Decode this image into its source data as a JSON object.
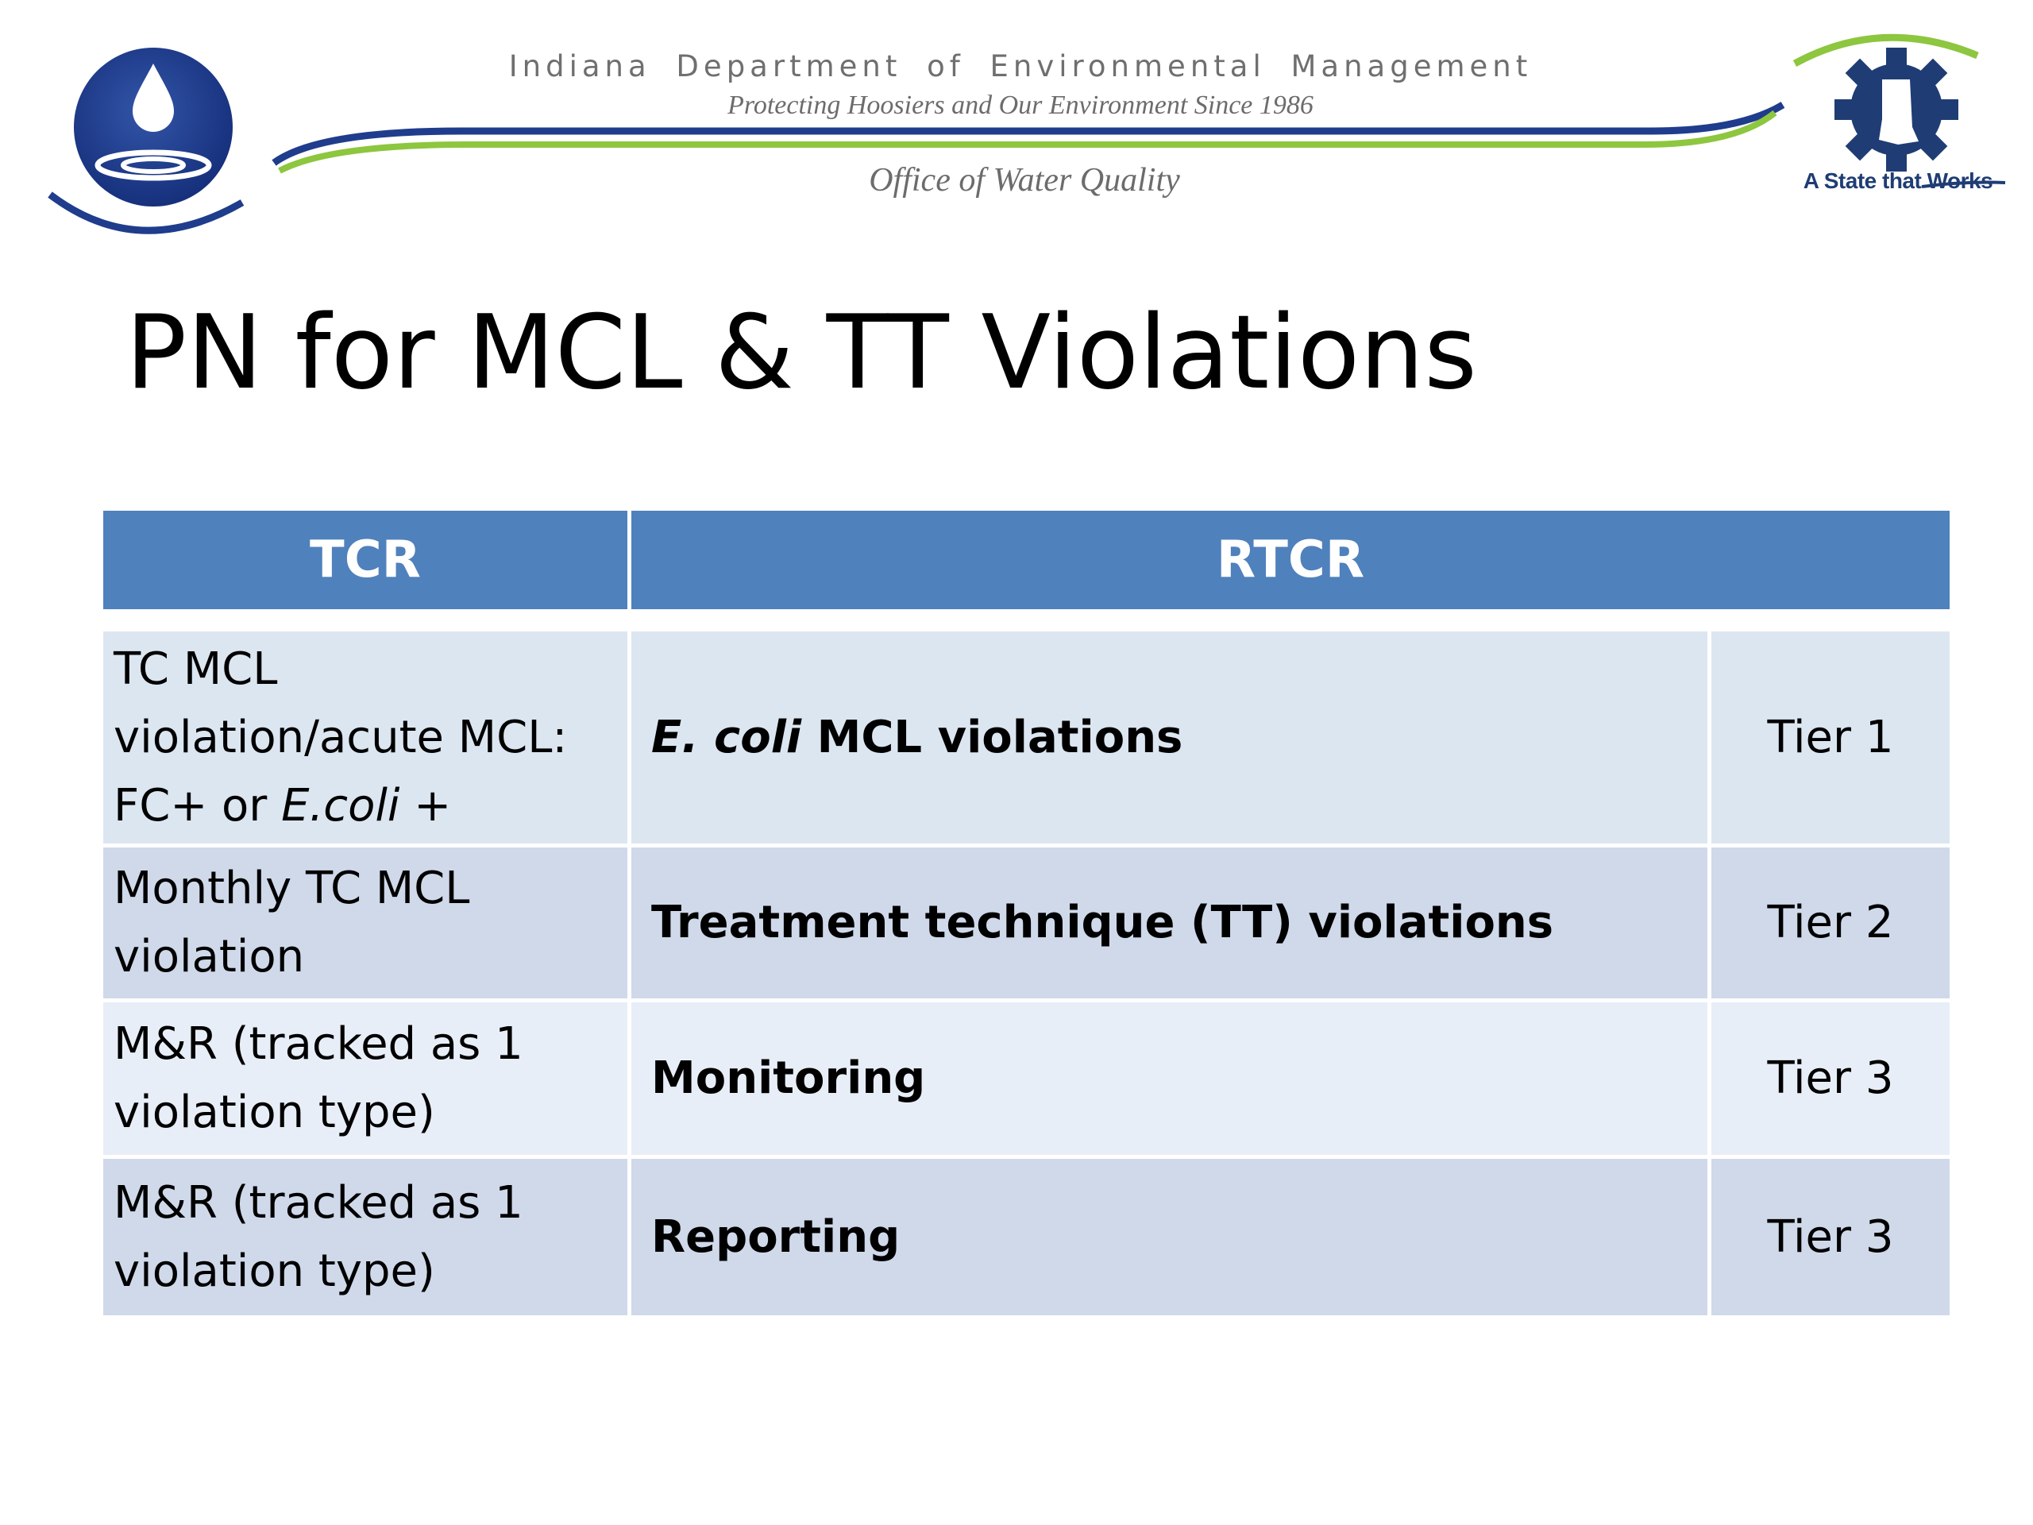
{
  "header": {
    "org_name": "Indiana Department of Environmental Management",
    "tagline": "Protecting Hoosiers and Our Environment Since 1986",
    "office": "Office of Water Quality",
    "state_logo_text": "A State that Works",
    "icons": [
      "idem-water-drop-logo-icon",
      "indiana-gear-logo-icon"
    ],
    "colors": {
      "navy": "#1f3d8c",
      "green": "#8dc63f",
      "header_blue": "#4f81bd"
    }
  },
  "title": "PN for MCL & TT Violations",
  "table": {
    "headers": {
      "tcr": "TCR",
      "rtcr": "RTCR"
    },
    "rows": [
      {
        "tcr": {
          "line1": "TC MCL",
          "line2": "violation/acute MCL:",
          "line3_pre": "FC+ or ",
          "line3_italic": "E.coli +"
        },
        "rtcr_italic": "E. coli",
        "rtcr": " MCL violations",
        "tier": "Tier 1"
      },
      {
        "tcr": {
          "line1": "Monthly TC MCL",
          "line2": "violation"
        },
        "rtcr": "Treatment technique (TT) violations",
        "tier": "Tier 2"
      },
      {
        "tcr": {
          "line1": "M&R (tracked as 1",
          "line2": "violation type)"
        },
        "rtcr": "Monitoring",
        "tier": "Tier 3"
      },
      {
        "tcr": {
          "line1": "M&R (tracked as 1",
          "line2": "violation type)"
        },
        "rtcr": "Reporting",
        "tier": "Tier 3"
      }
    ]
  }
}
